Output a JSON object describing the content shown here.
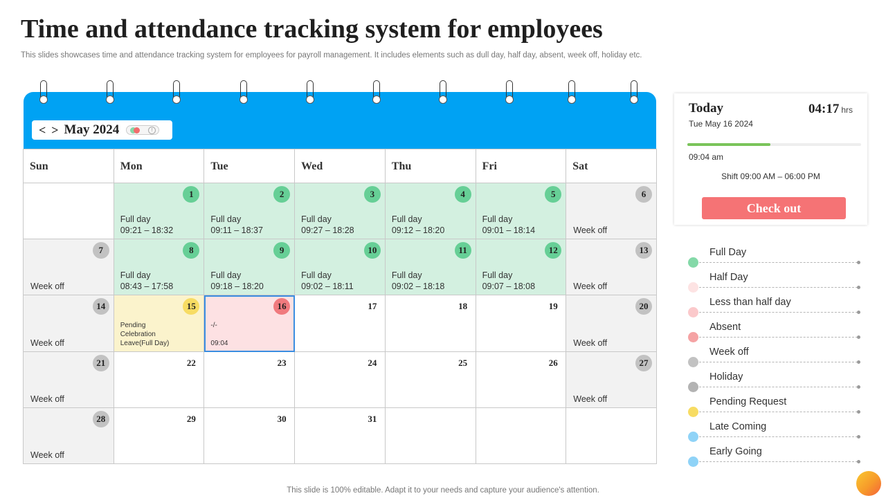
{
  "title": "Time and attendance tracking system for employees",
  "subtitle": "This slides showcases time and attendance tracking system for employees for payroll management. It includes elements such as dull day, half day, absent, week off, holiday etc.",
  "calendar": {
    "prev_label": "<",
    "next_label": ">",
    "month": "May 2024",
    "toggle_mark": "!",
    "days_of_week": [
      "Sun",
      "Mon",
      "Tue",
      "Wed",
      "Thu",
      "Fri",
      "Sat"
    ],
    "weeks": [
      [
        {
          "day": "",
          "type": "blank"
        },
        {
          "day": "1",
          "type": "full",
          "status": "Full day",
          "times": "09:21 – 18:32"
        },
        {
          "day": "2",
          "type": "full",
          "status": "Full day",
          "times": "09:11 – 18:37"
        },
        {
          "day": "3",
          "type": "full",
          "status": "Full day",
          "times": "09:27 – 18:28"
        },
        {
          "day": "4",
          "type": "full",
          "status": "Full day",
          "times": "09:12 – 18:20"
        },
        {
          "day": "5",
          "type": "full",
          "status": "Full day",
          "times": "09:01 – 18:14"
        },
        {
          "day": "6",
          "type": "off",
          "status": "Week off"
        }
      ],
      [
        {
          "day": "7",
          "type": "off",
          "status": "Week off"
        },
        {
          "day": "8",
          "type": "full",
          "status": "Full day",
          "times": "08:43 – 17:58"
        },
        {
          "day": "9",
          "type": "full",
          "status": "Full day",
          "times": "09:18 – 18:20"
        },
        {
          "day": "10",
          "type": "full",
          "status": "Full day",
          "times": "09:02 – 18:11"
        },
        {
          "day": "11",
          "type": "full",
          "status": "Full day",
          "times": "09:02 – 18:18"
        },
        {
          "day": "12",
          "type": "full",
          "status": "Full day",
          "times": "09:07 – 18:08"
        },
        {
          "day": "13",
          "type": "off",
          "status": "Week off"
        }
      ],
      [
        {
          "day": "14",
          "type": "off",
          "status": "Week off"
        },
        {
          "day": "15",
          "type": "pending",
          "lines": [
            "Pending",
            "Celebration",
            "Leave(Full Day)"
          ]
        },
        {
          "day": "16",
          "type": "today",
          "dash": "-/-",
          "time": "09:04"
        },
        {
          "day": "17",
          "type": "plain"
        },
        {
          "day": "18",
          "type": "plain"
        },
        {
          "day": "19",
          "type": "plain"
        },
        {
          "day": "20",
          "type": "off",
          "status": "Week off"
        }
      ],
      [
        {
          "day": "21",
          "type": "off",
          "status": "Week off"
        },
        {
          "day": "22",
          "type": "plain"
        },
        {
          "day": "23",
          "type": "plain"
        },
        {
          "day": "24",
          "type": "plain"
        },
        {
          "day": "25",
          "type": "plain"
        },
        {
          "day": "26",
          "type": "plain"
        },
        {
          "day": "27",
          "type": "off",
          "status": "Week off"
        }
      ],
      [
        {
          "day": "28",
          "type": "off",
          "status": "Week off"
        },
        {
          "day": "29",
          "type": "plain"
        },
        {
          "day": "30",
          "type": "plain"
        },
        {
          "day": "31",
          "type": "plain"
        },
        {
          "day": "",
          "type": "blank"
        },
        {
          "day": "",
          "type": "blank"
        },
        {
          "day": "",
          "type": "blank"
        }
      ]
    ]
  },
  "today_card": {
    "label": "Today",
    "clock": "04:17",
    "clock_unit": "hrs",
    "date": "Tue May 16 2024",
    "progress_fraction": 0.48,
    "checkin_time": "09:04 am",
    "shift": "Shift 09:00 AM – 06:00 PM",
    "checkout_label": "Check out"
  },
  "legend": [
    {
      "label": "Full Day",
      "color": "#84d9a8"
    },
    {
      "label": "Half Day",
      "color": "#fde3e3"
    },
    {
      "label": "Less than half day",
      "color": "#fbc9cb"
    },
    {
      "label": "Absent",
      "color": "#f5a3a4"
    },
    {
      "label": "Week off",
      "color": "#c2c2c2"
    },
    {
      "label": "Holiday",
      "color": "#b3b3b3"
    },
    {
      "label": "Pending Request",
      "color": "#f7dc63"
    },
    {
      "label": "Late Coming",
      "color": "#8fd3f7"
    },
    {
      "label": "Early Going",
      "color": "#8fd3f7"
    }
  ],
  "footer": "This slide is 100% editable. Adapt it to your needs and capture your audience's attention."
}
